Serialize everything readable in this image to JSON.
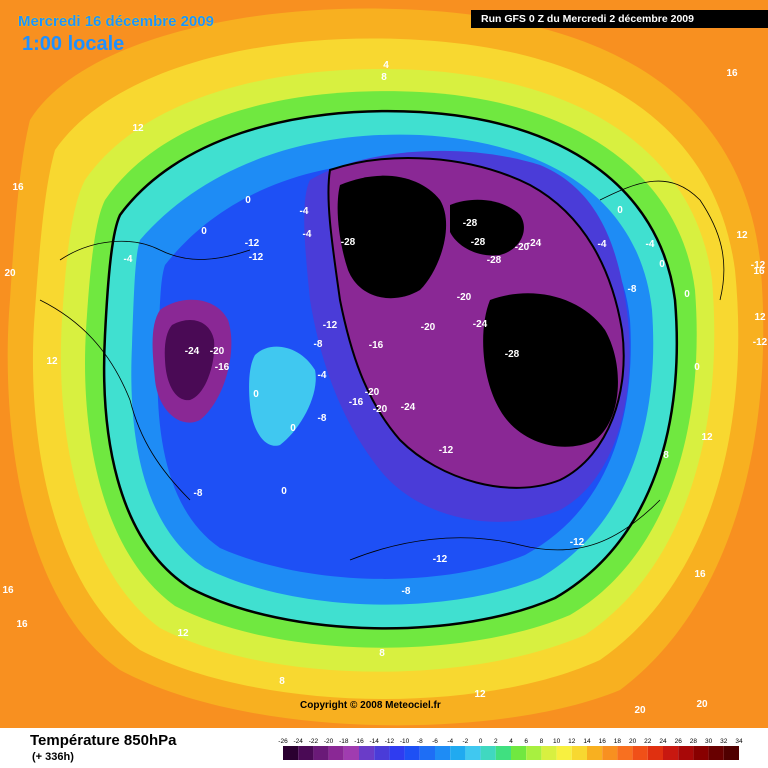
{
  "title": {
    "date": "Mercredi 16 décembre 2009",
    "local_time": "1:00 locale"
  },
  "run_info": "Run GFS 0 Z du Mercredi 2 décembre 2009",
  "copyright": "Copyright © 2008 Meteociel.fr",
  "footer": {
    "variable": "Température 850hPa",
    "horizon": "(+ 336h)"
  },
  "legend": {
    "ticks": [
      "-26",
      "-24",
      "-22",
      "-20",
      "-18",
      "-16",
      "-14",
      "-12",
      "-10",
      "-8",
      "-6",
      "-4",
      "-2",
      "0",
      "2",
      "4",
      "6",
      "8",
      "10",
      "12",
      "14",
      "16",
      "18",
      "20",
      "22",
      "24",
      "26",
      "28",
      "30",
      "32",
      "34"
    ],
    "colors": [
      "#2a0030",
      "#4a0a55",
      "#6a1a78",
      "#8a2895",
      "#a03cb0",
      "#6a3cc8",
      "#4a3cd8",
      "#2f3cf0",
      "#1e50f5",
      "#1e6ef5",
      "#1e8cf5",
      "#20aaf0",
      "#40c8f0",
      "#40d8c0",
      "#40e080",
      "#70e840",
      "#a8f040",
      "#d8f040",
      "#f8f040",
      "#f8d830",
      "#f8b020",
      "#f89020",
      "#f87020",
      "#f05018",
      "#e03010",
      "#c81810",
      "#a80808",
      "#880000",
      "#680000",
      "#500000"
    ]
  },
  "map_labels": [
    {
      "text": "-28"
    },
    {
      "text": "-28"
    },
    {
      "text": "-28"
    },
    {
      "text": "-28"
    },
    {
      "text": "-28"
    },
    {
      "text": "-20"
    },
    {
      "text": "-24"
    },
    {
      "text": "-20"
    },
    {
      "text": "-24"
    },
    {
      "text": "-20"
    },
    {
      "text": "-20"
    },
    {
      "text": "-24"
    },
    {
      "text": "-16"
    },
    {
      "text": "-16"
    },
    {
      "text": "-20"
    },
    {
      "text": "-24"
    },
    {
      "text": "-20"
    },
    {
      "text": "-16"
    },
    {
      "text": "-12"
    },
    {
      "text": "-12"
    },
    {
      "text": "-12"
    },
    {
      "text": "-12"
    },
    {
      "text": "-12"
    },
    {
      "text": "-12"
    },
    {
      "text": "-8"
    },
    {
      "text": "-8"
    },
    {
      "text": "-8"
    },
    {
      "text": "-8"
    },
    {
      "text": "-8"
    },
    {
      "text": "-4"
    },
    {
      "text": "-4"
    },
    {
      "text": "-4"
    },
    {
      "text": "-4"
    },
    {
      "text": "-4"
    },
    {
      "text": "-4"
    },
    {
      "text": "0"
    },
    {
      "text": "0"
    },
    {
      "text": "0"
    },
    {
      "text": "0"
    },
    {
      "text": "0"
    },
    {
      "text": "0"
    },
    {
      "text": "0"
    },
    {
      "text": "0"
    },
    {
      "text": "0"
    },
    {
      "text": "4"
    },
    {
      "text": "8"
    },
    {
      "text": "8"
    },
    {
      "text": "8"
    },
    {
      "text": "8"
    },
    {
      "text": "12"
    },
    {
      "text": "12"
    },
    {
      "text": "12"
    },
    {
      "text": "12"
    },
    {
      "text": "12"
    },
    {
      "text": "12"
    },
    {
      "text": "12"
    },
    {
      "text": "16"
    },
    {
      "text": "16"
    },
    {
      "text": "16"
    },
    {
      "text": "16"
    },
    {
      "text": "16"
    },
    {
      "text": "16"
    },
    {
      "text": "20"
    },
    {
      "text": "20"
    },
    {
      "text": "20"
    },
    {
      "text": "-12"
    },
    {
      "text": "-12"
    }
  ]
}
